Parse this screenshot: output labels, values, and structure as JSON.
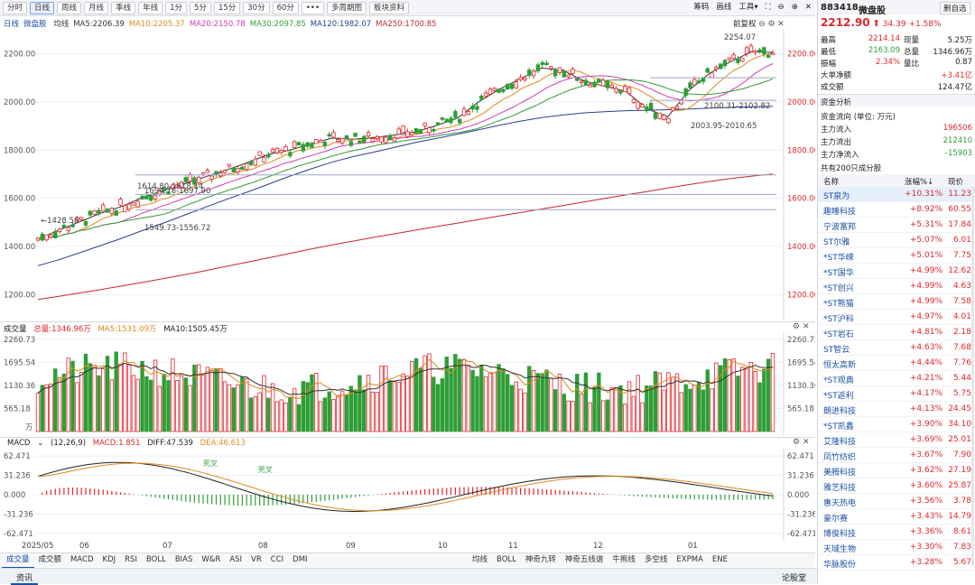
{
  "toolbar": {
    "buttons": [
      "分时",
      "日线",
      "周线",
      "月线",
      "季线",
      "年线",
      "1分",
      "5分",
      "15分",
      "30分",
      "60分",
      "•••",
      "多周期图",
      "板块资料"
    ],
    "active_index": 1,
    "right_items": [
      "筹码",
      "画线",
      "工具▾",
      "⛶",
      "⊖",
      "⊕",
      "✕"
    ]
  },
  "main_legend": {
    "prefix": "日线",
    "name": "微盘股",
    "items": [
      {
        "label": "均线",
        "color": "#333333"
      },
      {
        "label": "MA5:2206.39",
        "color": "#333333"
      },
      {
        "label": "MA10:2205.37",
        "color": "#e08a1e"
      },
      {
        "label": "MA20:2150.78",
        "color": "#d63bb0"
      },
      {
        "label": "MA30:2097.85",
        "color": "#2f9e36"
      },
      {
        "label": "MA120:1982.07",
        "color": "#2a3f8f"
      },
      {
        "label": "MA250:1700.85",
        "color": "#c8262c"
      }
    ],
    "restore": "前复权"
  },
  "price_axis": {
    "labels": [
      "2200.00",
      "2000.00",
      "1800.00",
      "1600.00",
      "1400.00",
      "1200.00"
    ]
  },
  "annotations": {
    "high": "2254.07",
    "low": "1428.58",
    "hline1": "1694.78-1697.90",
    "hline2": "1614.80-1618.14",
    "hline3": "1549.73-1556.72",
    "hline4": "2100.31-2102.82",
    "hline5": "2003.95-2010.65"
  },
  "volume_legend": {
    "title": "成交量",
    "total": "总量:1346.96万",
    "ma5": "MA5:1531.09万",
    "ma10": "MA10:1505.45万",
    "axis": [
      "2260.73",
      "1695.54",
      "1130.36",
      "565.18"
    ],
    "unit": "万"
  },
  "macd_legend": {
    "title": "MACD",
    "params": "(12,26,9)",
    "macd": "MACD:1.851",
    "diff": "DIFF:47.539",
    "dea": "DEA:46.613",
    "axis": [
      "62.471",
      "31.236",
      "0.000",
      "-31.236",
      "-62.471"
    ],
    "dead_cross_1": "死叉",
    "dead_cross_2": "死叉"
  },
  "x_axis": [
    "2025/05",
    "06",
    "07",
    "08",
    "09",
    "10",
    "11",
    "12",
    "01"
  ],
  "bottom_tabs_left": [
    "成交量",
    "成交额",
    "MACD",
    "KDJ",
    "RSI",
    "BOLL",
    "BIAS",
    "W&R",
    "ASI",
    "VR",
    "CCI",
    "DMI"
  ],
  "bottom_tabs_right": [
    "均线",
    "BOLL",
    "神奇九转",
    "神奇五线谱",
    "牛熊线",
    "多空线",
    "EXPMA",
    "ENE"
  ],
  "info_bar": {
    "left": "资讯",
    "right": "论股堂"
  },
  "quote": {
    "code": "883418",
    "name": "微盘股",
    "action": "删自选",
    "price": "2212.90",
    "change": "34.39",
    "pct": "+1.58%",
    "rows": [
      {
        "k1": "最高",
        "v1": "2214.14",
        "k2": "现量",
        "v2": "5.25万"
      },
      {
        "k1": "最低",
        "v1": "2163.09",
        "k2": "总量",
        "v2": "1346.96万"
      },
      {
        "k1": "振幅",
        "v1": "2.34%",
        "k2": "量比",
        "v2": "0.87"
      }
    ],
    "big_net_label": "大单净额",
    "big_net": "+3.41亿",
    "turnover_label": "成交额",
    "turnover": "124.47亿"
  },
  "capital": {
    "title": "资金分析",
    "unit_label": "资金流向 (单位: 万元)",
    "rows": [
      {
        "label": "主力流入",
        "value": "196506",
        "color": "#e0262c"
      },
      {
        "label": "主力流出",
        "value": "212410",
        "color": "#2f9e36"
      },
      {
        "label": "主力净流入",
        "value": "-15903",
        "color": "#2f9e36"
      }
    ]
  },
  "components": {
    "title": "共有200只成分股",
    "headers": [
      "名称",
      "涨幅%↓",
      "现价"
    ],
    "rows": [
      {
        "name": "ST泉为",
        "pct": "+10.31%",
        "price": "11.23"
      },
      {
        "name": "趣睡科技",
        "pct": "+8.92%",
        "price": "60.55"
      },
      {
        "name": "宁波富邦",
        "pct": "+5.31%",
        "price": "17.84"
      },
      {
        "name": "ST尔雅",
        "pct": "+5.07%",
        "price": "6.01"
      },
      {
        "name": "*ST华嵘",
        "pct": "+5.01%",
        "price": "7.75"
      },
      {
        "name": "*ST国华",
        "pct": "+4.99%",
        "price": "12.62"
      },
      {
        "name": "*ST创兴",
        "pct": "+4.99%",
        "price": "4.63"
      },
      {
        "name": "*ST熊猫",
        "pct": "+4.99%",
        "price": "7.58"
      },
      {
        "name": "*ST沪科",
        "pct": "+4.97%",
        "price": "4.01"
      },
      {
        "name": "*ST岩石",
        "pct": "+4.81%",
        "price": "2.18"
      },
      {
        "name": "ST智云",
        "pct": "+4.63%",
        "price": "7.68"
      },
      {
        "name": "恒太高新",
        "pct": "+4.44%",
        "price": "7.76"
      },
      {
        "name": "*ST观典",
        "pct": "+4.21%",
        "price": "5.44"
      },
      {
        "name": "*ST返利",
        "pct": "+4.17%",
        "price": "5.75"
      },
      {
        "name": "朗进科技",
        "pct": "+4.13%",
        "price": "24.45"
      },
      {
        "name": "*ST凯鑫",
        "pct": "+3.90%",
        "price": "34.10"
      },
      {
        "name": "艾隆科技",
        "pct": "+3.69%",
        "price": "25.01"
      },
      {
        "name": "凤竹纺织",
        "pct": "+3.67%",
        "price": "7.90"
      },
      {
        "name": "美腾科技",
        "pct": "+3.62%",
        "price": "27.19"
      },
      {
        "name": "雅艺科技",
        "pct": "+3.60%",
        "price": "25.87"
      },
      {
        "name": "惠天热电",
        "pct": "+3.56%",
        "price": "3.78"
      },
      {
        "name": "豪尔赛",
        "pct": "+3.43%",
        "price": "14.79"
      },
      {
        "name": "博俊科技",
        "pct": "+3.36%",
        "price": "8.61"
      },
      {
        "name": "天域生物",
        "pct": "+3.30%",
        "price": "7.83"
      },
      {
        "name": "华脉股份",
        "pct": "+3.28%",
        "price": "5.67"
      }
    ]
  },
  "colors": {
    "up": "#e0262c",
    "down": "#2f9e36",
    "link": "#1a4fa3"
  },
  "chart_data": {
    "type": "line",
    "title": "",
    "series": [
      {
        "name": "MA5",
        "values": [
          1431,
          1468,
          1503,
          1538,
          1566,
          1604,
          1632,
          1661,
          1690,
          1718,
          1749,
          1783,
          1800,
          1826,
          1850,
          1845,
          1852,
          1863,
          1876,
          1903,
          1934,
          2001,
          2054,
          2098,
          2141,
          2132,
          2088,
          2065,
          2045,
          1972,
          1938,
          2048,
          2120,
          2168,
          2209,
          2206
        ]
      },
      {
        "name": "MA120",
        "values": [
          1320,
          1345,
          1374,
          1404,
          1434,
          1467,
          1498,
          1531,
          1564,
          1596,
          1627,
          1659,
          1692,
          1722,
          1750,
          1773,
          1792,
          1812,
          1832,
          1849,
          1867,
          1885,
          1904,
          1921,
          1935,
          1946,
          1955,
          1960,
          1964,
          1966,
          1968,
          1971,
          1975,
          1978,
          1980,
          1982
        ]
      },
      {
        "name": "MA250",
        "values": [
          1180,
          1193,
          1207,
          1221,
          1236,
          1251,
          1267,
          1283,
          1300,
          1318,
          1335,
          1353,
          1371,
          1389,
          1406,
          1422,
          1438,
          1453,
          1468,
          1483,
          1497,
          1512,
          1527,
          1541,
          1556,
          1570,
          1585,
          1600,
          1614,
          1628,
          1643,
          1657,
          1670,
          1682,
          1692,
          1701
        ]
      }
    ],
    "ylim": [
      1100,
      2300
    ],
    "x_ticks": [
      "2025/05",
      "06",
      "07",
      "08",
      "09",
      "10",
      "11",
      "12",
      "01"
    ],
    "last_close": 2212.9
  }
}
